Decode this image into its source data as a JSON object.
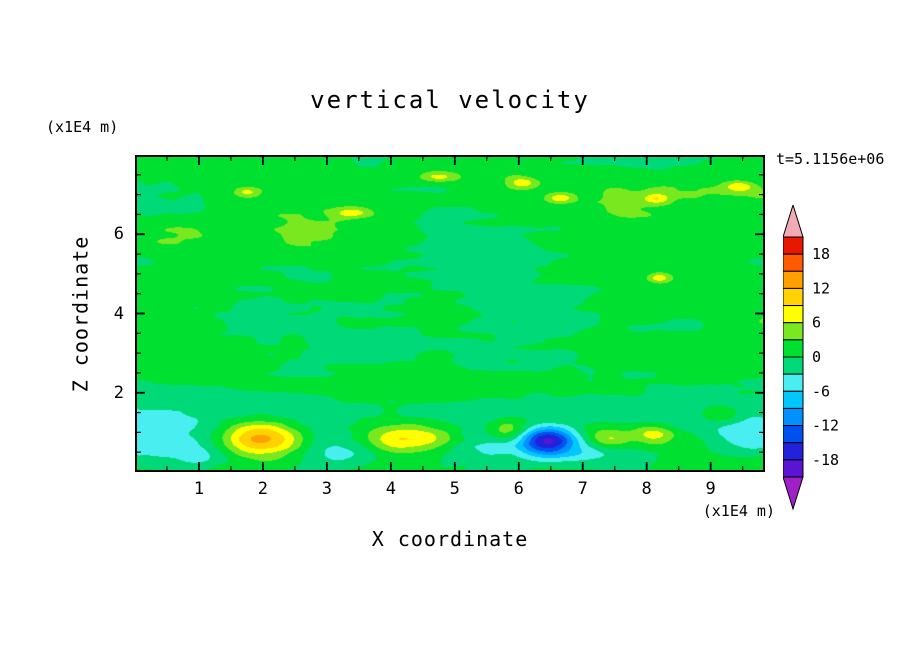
{
  "title": "vertical velocity",
  "time_label": "t=5.1156e+06",
  "axes": {
    "x_label": "X coordinate",
    "x_unit": "(x1E4 m)",
    "y_label": "Z coordinate",
    "y_unit": "(x1E4 m)",
    "x_ticks": [
      1,
      2,
      3,
      4,
      5,
      6,
      7,
      8,
      9
    ],
    "y_ticks": [
      2,
      4,
      6
    ],
    "x_minor_step": 0.5,
    "y_minor_step": 0.5
  },
  "colorbar": {
    "tick_values": [
      18,
      12,
      6,
      0,
      -6,
      -12,
      -18
    ],
    "tick_labels": [
      "18",
      "12",
      "6",
      "0",
      "-6",
      "-12",
      "-18"
    ]
  },
  "chart_data": {
    "type": "heatmap",
    "title": "vertical velocity",
    "xlabel": "X coordinate (x1E4 m)",
    "ylabel": "Z coordinate (x1E4 m)",
    "time": "t=5.1156e+06",
    "x_range": [
      0,
      9.85
    ],
    "z_range": [
      0,
      8.0
    ],
    "contour_interval": 3,
    "levels": [
      -21,
      -18,
      -15,
      -12,
      -9,
      -6,
      -3,
      0,
      3,
      6,
      9,
      12,
      15,
      18,
      21
    ],
    "palette": [
      "#a020c8",
      "#5a14d2",
      "#2222dc",
      "#0050f0",
      "#0090ff",
      "#00c8ff",
      "#48eef0",
      "#00d978",
      "#00e030",
      "#7ae81e",
      "#ffff00",
      "#ffd200",
      "#ffa000",
      "#ff5a00",
      "#e81800",
      "#f2aab4"
    ],
    "background_field": "mottled streaky field, values mostly between -3 and 3 (two green bands), larger amplitude structures near the bottom boundary",
    "features": [
      {
        "x": 2.0,
        "z": 0.85,
        "sx": 0.62,
        "sz": 0.42,
        "a": 14.5
      },
      {
        "x": 4.25,
        "z": 0.85,
        "sx": 0.75,
        "sz": 0.38,
        "a": 9.5
      },
      {
        "x": 5.85,
        "z": 1.05,
        "sx": 0.32,
        "sz": 0.28,
        "a": 7.0
      },
      {
        "x": 6.45,
        "z": 0.8,
        "sx": 0.42,
        "sz": 0.34,
        "a": -16.5
      },
      {
        "x": 7.4,
        "z": 0.85,
        "sx": 0.38,
        "sz": 0.26,
        "a": 7.5
      },
      {
        "x": 8.1,
        "z": 0.95,
        "sx": 0.3,
        "sz": 0.24,
        "a": 6.5
      },
      {
        "x": 0.15,
        "z": 0.85,
        "sx": 0.85,
        "sz": 0.65,
        "a": -5.5
      },
      {
        "x": 1.05,
        "z": 0.4,
        "sx": 0.5,
        "sz": 0.3,
        "a": -4.0
      },
      {
        "x": 3.15,
        "z": 0.5,
        "sx": 0.65,
        "sz": 0.42,
        "a": -4.5
      },
      {
        "x": 5.5,
        "z": 0.55,
        "sx": 0.9,
        "sz": 0.5,
        "a": -4.5
      },
      {
        "x": 7.0,
        "z": 0.6,
        "sx": 0.8,
        "sz": 0.45,
        "a": -4.5
      },
      {
        "x": 9.6,
        "z": 0.9,
        "sx": 0.65,
        "sz": 0.55,
        "a": -6.5
      },
      {
        "x": 9.15,
        "z": 1.45,
        "sx": 0.3,
        "sz": 0.2,
        "a": 5.5
      },
      {
        "x": 4.8,
        "z": 1.6,
        "sx": 3.5,
        "sz": 0.45,
        "a": -2.2
      },
      {
        "x": 1.2,
        "z": 1.7,
        "sx": 1.5,
        "sz": 0.4,
        "a": -2.0
      },
      {
        "x": 8.8,
        "z": 1.6,
        "sx": 1.2,
        "sz": 0.4,
        "a": -1.8
      },
      {
        "x": 1.75,
        "z": 7.05,
        "sx": 0.22,
        "sz": 0.14,
        "a": 6.5
      },
      {
        "x": 3.4,
        "z": 6.55,
        "sx": 0.3,
        "sz": 0.13,
        "a": 6.0
      },
      {
        "x": 4.75,
        "z": 7.45,
        "sx": 0.3,
        "sz": 0.13,
        "a": 6.0
      },
      {
        "x": 6.05,
        "z": 7.3,
        "sx": 0.22,
        "sz": 0.13,
        "a": 6.5
      },
      {
        "x": 6.65,
        "z": 6.9,
        "sx": 0.2,
        "sz": 0.12,
        "a": 6.0
      },
      {
        "x": 8.15,
        "z": 6.9,
        "sx": 0.2,
        "sz": 0.12,
        "a": 6.0
      },
      {
        "x": 9.45,
        "z": 7.2,
        "sx": 0.24,
        "sz": 0.14,
        "a": 6.5
      },
      {
        "x": 8.2,
        "z": 4.9,
        "sx": 0.16,
        "sz": 0.11,
        "a": 6.2
      }
    ],
    "noise": {
      "bias": 0.6,
      "seed": 7,
      "octaves": [
        [
          0.38,
          1.0,
          1.9
        ],
        [
          1.0,
          2.4,
          1.15
        ],
        [
          2.6,
          6.0,
          0.65
        ]
      ]
    }
  }
}
